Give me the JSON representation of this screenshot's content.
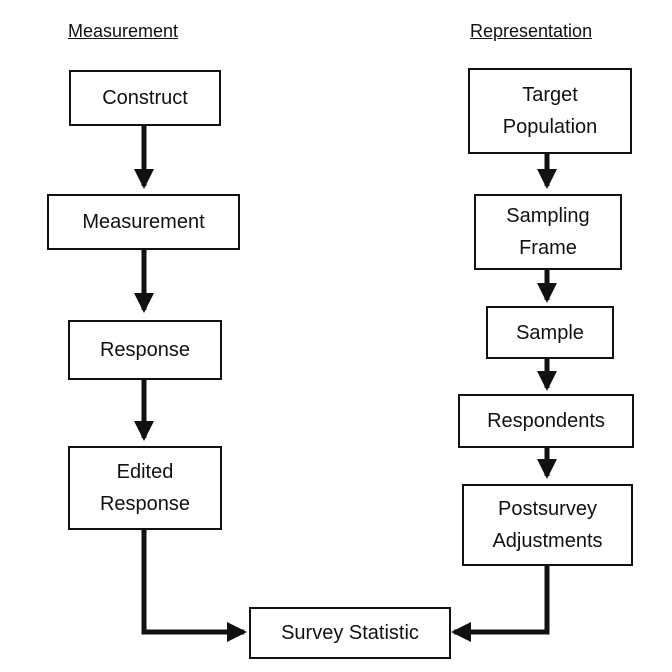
{
  "headings": {
    "measurement": "Measurement",
    "representation": "Representation"
  },
  "measurement_steps": [
    "Construct",
    "Measurement",
    "Response",
    "Edited\nResponse"
  ],
  "representation_steps": [
    "Target\nPopulation",
    "Sampling\nFrame",
    "Sample",
    "Respondents",
    "Postsurvey\nAdjustments"
  ],
  "outcome": "Survey Statistic"
}
